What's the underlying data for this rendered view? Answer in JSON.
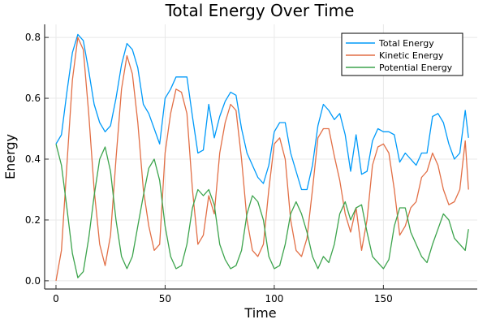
{
  "chart_data": {
    "type": "line",
    "title": "Total Energy Over Time",
    "xlabel": "Time",
    "ylabel": "Energy",
    "xlim": [
      -5.2,
      193
    ],
    "ylim": [
      -0.027,
      0.843
    ],
    "xticks": [
      0,
      50,
      100,
      150
    ],
    "xtick_labels": [
      "0",
      "50",
      "100",
      "150"
    ],
    "yticks": [
      0,
      0.2,
      0.4,
      0.6,
      0.8
    ],
    "ytick_labels": [
      "0.0",
      "0.2",
      "0.4",
      "0.6",
      "0.8"
    ],
    "grid": true,
    "legend_position": "top-right",
    "x": [
      0,
      2.5,
      5,
      7.5,
      10,
      12.5,
      15,
      17.5,
      20,
      22.5,
      25,
      27.5,
      30,
      32.5,
      35,
      37.5,
      40,
      42.5,
      45,
      47.5,
      50,
      52.5,
      55,
      57.5,
      60,
      62.5,
      65,
      67.5,
      70,
      72.5,
      75,
      77.5,
      80,
      82.5,
      85,
      87.5,
      90,
      92.5,
      95,
      97.5,
      100,
      102.5,
      105,
      107.5,
      110,
      112.5,
      115,
      117.5,
      120,
      122.5,
      125,
      127.5,
      130,
      132.5,
      135,
      137.5,
      140,
      142.5,
      145,
      147.5,
      150,
      152.5,
      155,
      157.5,
      160,
      162.5,
      165,
      167.5,
      170,
      172.5,
      175,
      177.5,
      180,
      182.5,
      185,
      187.5,
      189
    ],
    "series": [
      {
        "name": "Total Energy",
        "color": "#009af9",
        "values": [
          0.45,
          0.48,
          0.62,
          0.75,
          0.81,
          0.79,
          0.69,
          0.58,
          0.52,
          0.49,
          0.51,
          0.6,
          0.71,
          0.78,
          0.76,
          0.7,
          0.58,
          0.55,
          0.5,
          0.45,
          0.6,
          0.63,
          0.67,
          0.67,
          0.67,
          0.54,
          0.42,
          0.43,
          0.58,
          0.47,
          0.54,
          0.59,
          0.62,
          0.61,
          0.5,
          0.42,
          0.38,
          0.34,
          0.32,
          0.38,
          0.49,
          0.52,
          0.52,
          0.42,
          0.36,
          0.3,
          0.3,
          0.38,
          0.51,
          0.58,
          0.56,
          0.53,
          0.55,
          0.48,
          0.36,
          0.48,
          0.35,
          0.36,
          0.46,
          0.5,
          0.49,
          0.49,
          0.48,
          0.39,
          0.42,
          0.4,
          0.38,
          0.42,
          0.42,
          0.54,
          0.55,
          0.52,
          0.45,
          0.4,
          0.42,
          0.56,
          0.47
        ]
      },
      {
        "name": "Kinetic Energy",
        "color": "#e26f46",
        "values": [
          0.0,
          0.1,
          0.38,
          0.66,
          0.8,
          0.76,
          0.55,
          0.3,
          0.12,
          0.05,
          0.15,
          0.4,
          0.63,
          0.74,
          0.68,
          0.52,
          0.3,
          0.18,
          0.1,
          0.12,
          0.42,
          0.55,
          0.63,
          0.62,
          0.55,
          0.3,
          0.12,
          0.15,
          0.28,
          0.22,
          0.42,
          0.52,
          0.58,
          0.56,
          0.4,
          0.2,
          0.1,
          0.08,
          0.12,
          0.3,
          0.45,
          0.47,
          0.4,
          0.2,
          0.1,
          0.08,
          0.14,
          0.3,
          0.47,
          0.5,
          0.5,
          0.41,
          0.33,
          0.22,
          0.16,
          0.24,
          0.1,
          0.2,
          0.38,
          0.44,
          0.45,
          0.42,
          0.3,
          0.15,
          0.18,
          0.24,
          0.26,
          0.34,
          0.36,
          0.42,
          0.38,
          0.3,
          0.25,
          0.26,
          0.3,
          0.46,
          0.3
        ]
      },
      {
        "name": "Potential Energy",
        "color": "#3da44d",
        "values": [
          0.45,
          0.38,
          0.24,
          0.09,
          0.01,
          0.03,
          0.14,
          0.28,
          0.4,
          0.44,
          0.36,
          0.2,
          0.08,
          0.04,
          0.08,
          0.18,
          0.28,
          0.37,
          0.4,
          0.33,
          0.18,
          0.08,
          0.04,
          0.05,
          0.12,
          0.24,
          0.3,
          0.28,
          0.3,
          0.25,
          0.12,
          0.07,
          0.04,
          0.05,
          0.1,
          0.22,
          0.28,
          0.26,
          0.2,
          0.08,
          0.04,
          0.05,
          0.12,
          0.22,
          0.26,
          0.22,
          0.16,
          0.08,
          0.04,
          0.08,
          0.06,
          0.12,
          0.22,
          0.26,
          0.2,
          0.24,
          0.25,
          0.16,
          0.08,
          0.06,
          0.04,
          0.07,
          0.18,
          0.24,
          0.24,
          0.16,
          0.12,
          0.08,
          0.06,
          0.12,
          0.17,
          0.22,
          0.2,
          0.14,
          0.12,
          0.1,
          0.17
        ]
      }
    ]
  }
}
